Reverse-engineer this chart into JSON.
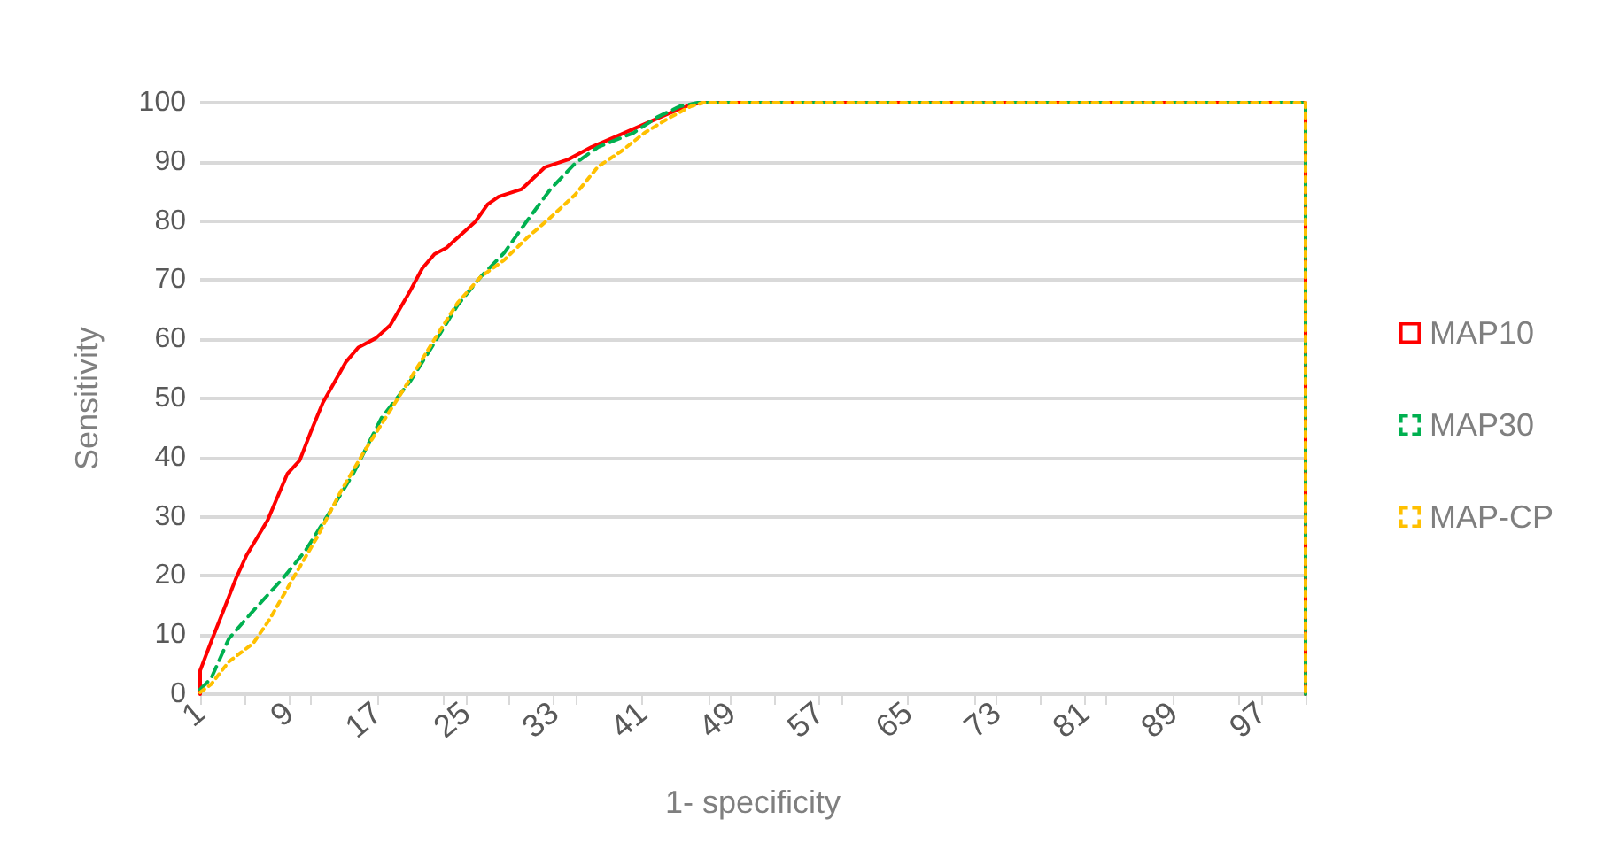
{
  "chart_data": {
    "type": "line",
    "xlabel": "1- specificity",
    "ylabel": "Sensitivity",
    "xlim": [
      1,
      101
    ],
    "xticks": [
      1,
      {
        "value": 5,
        "label": null
      },
      9,
      {
        "value": 11,
        "label": null
      },
      17,
      {
        "value": 23,
        "label": null
      },
      25,
      {
        "value": 29,
        "label": null
      },
      33,
      {
        "value": 35,
        "label": null
      },
      41,
      {
        "value": 47,
        "label": null
      },
      49,
      {
        "value": 53,
        "label": null
      },
      57,
      {
        "value": 59,
        "label": null
      },
      65,
      {
        "value": 71,
        "label": null
      },
      73,
      {
        "value": 77,
        "label": null
      },
      81,
      {
        "value": 83,
        "label": null
      },
      89,
      {
        "value": 95,
        "label": null
      },
      97,
      {
        "value": 101,
        "label": null
      }
    ],
    "ylim": [
      0,
      100
    ],
    "yticks": [
      0,
      10,
      20,
      30,
      40,
      50,
      60,
      70,
      80,
      90,
      100
    ],
    "grid": "y",
    "legend": "right",
    "marker": "none",
    "series": [
      {
        "name": "MAP10",
        "color": "#ff0000",
        "line_style": "solid",
        "x": [
          1,
          1,
          2.1,
          3.1,
          4.2,
          5.2,
          7.1,
          8.9,
          10,
          11,
          12.1,
          14.2,
          15.3,
          16.9,
          18.2,
          20,
          21.1,
          22.2,
          23.3,
          25.9,
          27,
          28,
          30.1,
          32.2,
          34.3,
          36.4,
          39,
          41.2,
          43.3,
          45.4,
          46.5,
          101,
          101
        ],
        "values": [
          0,
          4,
          9.4,
          14.1,
          19.4,
          23.5,
          29.4,
          37.3,
          39.5,
          44.3,
          49.3,
          56.2,
          58.6,
          60.2,
          62.4,
          68.2,
          72,
          74.4,
          75.5,
          79.9,
          82.8,
          84.1,
          85.4,
          89.1,
          90.4,
          92.5,
          94.6,
          96.4,
          98.1,
          99.7,
          100,
          100,
          0
        ]
      },
      {
        "name": "MAP30",
        "color": "#00b050",
        "line_style": "dashed",
        "x": [
          1,
          2,
          3.6,
          5.8,
          8.4,
          10.5,
          12.6,
          14.8,
          17.4,
          20,
          22.2,
          24.3,
          26.4,
          28.5,
          30.6,
          32.7,
          34.9,
          37,
          40.2,
          42.3,
          44.4,
          46,
          101,
          101
        ],
        "values": [
          0.8,
          2.7,
          9.4,
          14.1,
          19.4,
          24.2,
          30.4,
          37.1,
          46.7,
          52.9,
          59.4,
          65.8,
          70.6,
          74.6,
          80.1,
          85.4,
          89.7,
          92.5,
          94.9,
          97.5,
          99.4,
          100,
          100,
          0
        ]
      },
      {
        "name": "MAP-CP",
        "color": "#ffc000",
        "line_style": "dotted",
        "x": [
          1,
          2,
          3.6,
          5.8,
          7.3,
          9.5,
          11.6,
          13.7,
          15.8,
          17.9,
          20,
          22.2,
          24.3,
          26.4,
          28.5,
          30.6,
          32.7,
          34.9,
          37,
          39.1,
          41.2,
          43.3,
          45.4,
          46.5,
          101,
          101
        ],
        "values": [
          0.3,
          1.7,
          5.5,
          8.6,
          12.7,
          19.9,
          26.6,
          34.2,
          40.9,
          47.1,
          53.3,
          60,
          66.2,
          70.6,
          73.4,
          77.2,
          80.6,
          84.4,
          89.2,
          91.8,
          94.9,
          97.3,
          99.4,
          100,
          100,
          0
        ]
      }
    ]
  }
}
